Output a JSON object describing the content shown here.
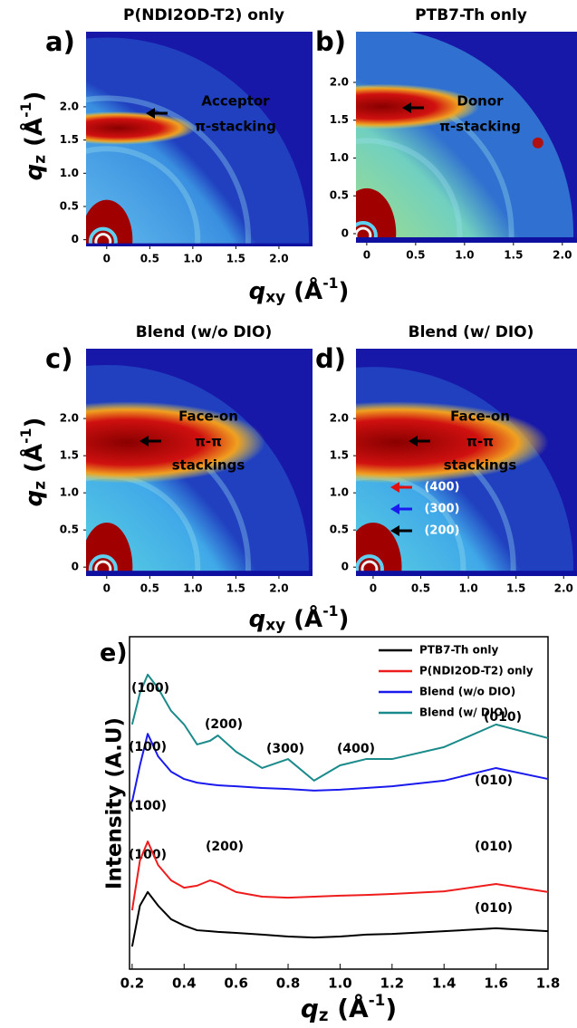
{
  "shared_labels": {
    "qz_label": [
      "q",
      "z",
      " (Å",
      "-1",
      ")"
    ],
    "qxy_label": [
      "q",
      "xy",
      " (Å",
      "-1",
      ")"
    ]
  },
  "chart_data": [
    {
      "type": "heatmap",
      "panel_label": "a)",
      "title": "P(NDI2OD-T2) only",
      "xlim": [
        -0.24,
        2.39
      ],
      "ylim": [
        -0.1,
        3.13
      ],
      "xticks": [
        0,
        0.5,
        {
          "value": 1,
          "label": "1.0"
        },
        1.5,
        {
          "value": 2,
          "label": "2.0"
        }
      ],
      "yticks": [
        0,
        0.5,
        {
          "value": 1,
          "label": "1.0"
        },
        1.5,
        {
          "value": 2,
          "label": "2.0"
        }
      ],
      "annotations": [
        "Acceptor",
        "π-stacking"
      ]
    },
    {
      "type": "heatmap",
      "panel_label": "b)",
      "title": "PTB7-Th only",
      "xlim": [
        -0.11,
        2.15
      ],
      "ylim": [
        -0.12,
        2.67
      ],
      "xticks": [
        0,
        0.5,
        {
          "value": 1,
          "label": "1.0"
        },
        1.5,
        {
          "value": 2,
          "label": "2.0"
        }
      ],
      "yticks": [
        0,
        0.5,
        {
          "value": 1,
          "label": "1.0"
        },
        1.5,
        {
          "value": 2,
          "label": "2.0"
        }
      ],
      "annotations": [
        "Donor",
        "π-stacking"
      ]
    },
    {
      "type": "heatmap",
      "panel_label": "c)",
      "title": "Blend (w/o DIO)",
      "xlim": [
        -0.24,
        2.39
      ],
      "ylim": [
        -0.12,
        2.94
      ],
      "xticks": [
        0,
        0.5,
        {
          "value": 1,
          "label": "1.0"
        },
        1.5,
        {
          "value": 2,
          "label": "2.0"
        }
      ],
      "yticks": [
        0,
        0.5,
        {
          "value": 1,
          "label": "1.0"
        },
        1.5,
        {
          "value": 2,
          "label": "2.0"
        }
      ],
      "annotations": [
        "Face-on",
        "π-π",
        "stackings"
      ]
    },
    {
      "type": "heatmap",
      "panel_label": "d)",
      "title": "Blend (w/ DIO)",
      "xlim": [
        -0.18,
        2.14
      ],
      "ylim": [
        -0.12,
        2.94
      ],
      "xticks": [
        0,
        0.5,
        {
          "value": 1,
          "label": "1.0"
        },
        1.5,
        {
          "value": 2,
          "label": "2.0"
        }
      ],
      "yticks": [
        0,
        0.5,
        {
          "value": 1,
          "label": "1.0"
        },
        1.5,
        {
          "value": 2,
          "label": "2.0"
        }
      ],
      "annotations": [
        "Face-on",
        "π-π",
        "stackings",
        "(400)",
        "(300)",
        "(200)"
      ]
    },
    {
      "type": "line",
      "panel_label": "e)",
      "ylabel": "Intensity (A.U)",
      "xlim": [
        0.19,
        1.8
      ],
      "ylim": [
        0,
        10
      ],
      "legend": "upper right",
      "xticks": [
        0.2,
        0.4,
        0.6,
        0.8,
        {
          "value": 1,
          "label": "1.0"
        },
        1.2,
        1.4,
        1.6,
        1.8
      ],
      "x": [
        0.2,
        0.23,
        0.26,
        0.3,
        0.35,
        0.4,
        0.45,
        0.5,
        0.53,
        0.6,
        0.7,
        0.8,
        0.9,
        1.0,
        1.1,
        1.2,
        1.4,
        1.6,
        1.8
      ],
      "series": [
        {
          "name": "PTB7-Th only",
          "color": "#000000",
          "annotations": [
            "(100)",
            "(010)"
          ],
          "values": [
            0.68,
            1.91,
            2.32,
            1.91,
            1.5,
            1.31,
            1.17,
            1.14,
            1.12,
            1.09,
            1.04,
            0.98,
            0.95,
            0.98,
            1.04,
            1.06,
            1.14,
            1.23,
            1.14
          ]
        },
        {
          "name": "P(NDI2OD-T2) only",
          "color": "#ee1c1c",
          "annotations": [
            "(100)",
            "(200)",
            "(010)"
          ],
          "values": [
            1.77,
            3.27,
            3.84,
            3.13,
            2.67,
            2.45,
            2.51,
            2.67,
            2.59,
            2.32,
            2.18,
            2.15,
            2.18,
            2.21,
            2.23,
            2.26,
            2.34,
            2.56,
            2.32
          ]
        },
        {
          "name": "Blend (w/o DIO)",
          "color": "#1a1aee",
          "annotations": [
            "(100)",
            "(010)"
          ],
          "values": [
            5.04,
            6.13,
            7.08,
            6.4,
            5.94,
            5.72,
            5.61,
            5.56,
            5.53,
            5.5,
            5.45,
            5.42,
            5.37,
            5.4,
            5.45,
            5.5,
            5.67,
            6.05,
            5.72
          ]
        },
        {
          "name": "Blend (w/ DIO)",
          "color": "#1a8a8a",
          "annotations": [
            "(100)",
            "(200)",
            "(300)",
            "(400)",
            "(010)"
          ],
          "values": [
            7.36,
            8.31,
            8.86,
            8.45,
            7.77,
            7.36,
            6.76,
            6.87,
            7.03,
            6.54,
            6.05,
            6.32,
            5.67,
            6.13,
            6.32,
            6.32,
            6.68,
            7.36,
            6.95
          ]
        }
      ]
    }
  ]
}
